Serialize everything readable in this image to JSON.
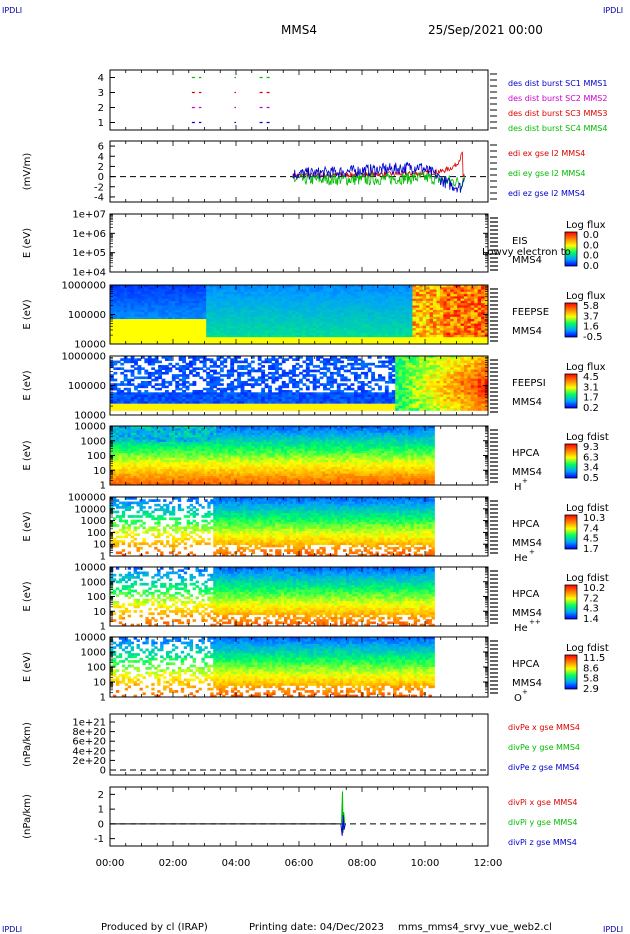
{
  "header": {
    "corner_tl": "IPDLI",
    "corner_tr": "IPDLI",
    "corner_bl": "IPDLI",
    "corner_br": "IPDLI",
    "spacecraft": "MMS4",
    "date": "25/Sep/2021 00:00"
  },
  "footer": {
    "producer": "Produced by cl (IRAP)",
    "printing_date": "Printing date: 04/Dec/2023",
    "script": "mms_mms4_srvy_vue_web2.cl"
  },
  "chart_data": [
    {
      "type": "line",
      "id": "des_dist_burst",
      "y_ticks": [
        "1",
        "2",
        "3",
        "4"
      ],
      "ylim": [
        0.5,
        4.5
      ],
      "legend": [
        "des dist burst SC1 MMS1",
        "des dist burst SC2 MMS2",
        "des dist burst SC3 MMS3",
        "des dist burst SC4 MMS4"
      ],
      "legend_colors": [
        "#0000cc",
        "#cc00cc",
        "#dd0000",
        "#00bb00"
      ],
      "series": [
        {
          "name": "des dist burst SC4 MMS4",
          "color": "#00bb00",
          "level": 4,
          "x_hours": [
            [
              2.6,
              2.9
            ],
            [
              3.95,
              4.0
            ],
            [
              4.75,
              5.1
            ]
          ]
        },
        {
          "name": "des dist burst SC3 MMS3",
          "color": "#dd0000",
          "level": 3,
          "x_hours": [
            [
              2.6,
              2.9
            ],
            [
              3.95,
              4.0
            ],
            [
              4.75,
              5.1
            ]
          ]
        },
        {
          "name": "des dist burst SC2 MMS2",
          "color": "#cc00cc",
          "level": 2,
          "x_hours": [
            [
              2.6,
              2.9
            ],
            [
              3.95,
              4.0
            ],
            [
              4.75,
              5.1
            ]
          ]
        },
        {
          "name": "des dist burst SC1 MMS1",
          "color": "#0000cc",
          "level": 1,
          "x_hours": [
            [
              2.6,
              2.9
            ],
            [
              3.95,
              4.0
            ],
            [
              4.75,
              5.1
            ]
          ]
        }
      ]
    },
    {
      "type": "line",
      "id": "edi_efield",
      "ylabel": "(mV/m)",
      "y_ticks": [
        "-4",
        "-2",
        "0",
        "2",
        "4",
        "6"
      ],
      "ylim": [
        -5,
        7
      ],
      "legend": [
        "edi ex gse l2 MMS4",
        "edi ey gse l2 MMS4",
        "edi ez gse l2 MMS4"
      ],
      "legend_colors": [
        "#dd0000",
        "#00bb00",
        "#0000cc"
      ],
      "data_range_hours": [
        5.8,
        11.25
      ],
      "series": [
        {
          "name": "edi ex gse l2 MMS4",
          "color": "#dd0000",
          "x": [
            5.8,
            7,
            8,
            9,
            9.8,
            10.5,
            10.8,
            11.0,
            11.1,
            11.2
          ],
          "y": [
            0.2,
            0.3,
            0.4,
            0.5,
            0.6,
            1.0,
            1.6,
            2.4,
            3.4,
            4.8
          ]
        },
        {
          "name": "edi ey gse l2 MMS4",
          "color": "#00bb00",
          "x": [
            5.8,
            7,
            8,
            9,
            10,
            10.5,
            11,
            11.2
          ],
          "y": [
            -0.6,
            -0.5,
            -0.6,
            -0.4,
            -0.2,
            -0.6,
            -1.0,
            -1.2
          ]
        },
        {
          "name": "edi ez gse l2 MMS4",
          "color": "#0000cc",
          "x": [
            5.8,
            7,
            8,
            9,
            9.8,
            10.3,
            10.6,
            10.9,
            11.2
          ],
          "y": [
            0.5,
            0.8,
            1.2,
            1.5,
            2.0,
            0.5,
            -1.0,
            -1.8,
            -2.2
          ]
        }
      ]
    },
    {
      "type": "heatmap",
      "id": "eis",
      "ylabel": "E (eV)",
      "y_ticks": [
        "1e+04",
        "1e+05",
        "1e+06",
        "1e+07"
      ],
      "instrument": "EIS",
      "spacecraft": "MMS4",
      "overlay_text": "Lowvy electron to",
      "colorbar_title": "Log flux",
      "colorbar_ticks": [
        "0.0",
        "0.0",
        "0.0",
        "0.0"
      ]
    },
    {
      "type": "heatmap",
      "id": "feepse",
      "ylabel": "E (eV)",
      "y_ticks": [
        "10000",
        "100000",
        "1000000"
      ],
      "instrument": "FEEPSE",
      "spacecraft": "MMS4",
      "colorbar_title": "Log flux",
      "colorbar_ticks": [
        "5.8",
        "3.7",
        "1.6",
        "-0.5"
      ]
    },
    {
      "type": "heatmap",
      "id": "feepsi",
      "ylabel": "E (eV)",
      "y_ticks": [
        "10000",
        "100000",
        "1000000"
      ],
      "instrument": "FEEPSI",
      "spacecraft": "MMS4",
      "colorbar_title": "Log flux",
      "colorbar_ticks": [
        "4.5",
        "3.1",
        "1.7",
        "0.2"
      ]
    },
    {
      "type": "heatmap",
      "id": "hpca_h",
      "ylabel": "E (eV)",
      "y_ticks": [
        "1",
        "10",
        "100",
        "1000",
        "10000"
      ],
      "instrument": "HPCA",
      "spacecraft": "MMS4",
      "species": "H",
      "charge": "+",
      "colorbar_title": "Log fdist",
      "colorbar_ticks": [
        "9.3",
        "6.3",
        "3.4",
        "0.5"
      ],
      "data_end_hours": 10.3
    },
    {
      "type": "heatmap",
      "id": "hpca_he",
      "ylabel": "E (eV)",
      "y_ticks": [
        "1",
        "10",
        "100",
        "1000",
        "10000",
        "100000"
      ],
      "instrument": "HPCA",
      "spacecraft": "MMS4",
      "species": "He",
      "charge": "+",
      "colorbar_title": "Log fdist",
      "colorbar_ticks": [
        "10.3",
        "7.4",
        "4.5",
        "1.7"
      ],
      "data_end_hours": 10.3
    },
    {
      "type": "heatmap",
      "id": "hpca_hepp",
      "ylabel": "E (eV)",
      "y_ticks": [
        "1",
        "10",
        "100",
        "1000",
        "10000"
      ],
      "instrument": "HPCA",
      "spacecraft": "MMS4",
      "species": "He",
      "charge": "++",
      "colorbar_title": "Log fdist",
      "colorbar_ticks": [
        "10.2",
        "7.2",
        "4.3",
        "1.4"
      ],
      "data_end_hours": 10.3
    },
    {
      "type": "heatmap",
      "id": "hpca_o",
      "ylabel": "E (eV)",
      "y_ticks": [
        "1",
        "10",
        "100",
        "1000",
        "10000"
      ],
      "instrument": "HPCA",
      "spacecraft": "MMS4",
      "species": "O",
      "charge": "+",
      "colorbar_title": "Log fdist",
      "colorbar_ticks": [
        "11.5",
        "8.6",
        "5.8",
        "2.9"
      ],
      "data_end_hours": 10.3
    },
    {
      "type": "line",
      "id": "divpe",
      "ylabel": "(nPa/km)",
      "y_ticks": [
        "0",
        "2e+20",
        "4e+20",
        "6e+20",
        "8e+20",
        "1e+21"
      ],
      "legend": [
        "divPe x gse MMS4",
        "divPe y gse MMS4",
        "divPe z gse MMS4"
      ],
      "legend_colors": [
        "#dd0000",
        "#00bb00",
        "#0000cc"
      ],
      "series": []
    },
    {
      "type": "line",
      "id": "divpi",
      "ylabel": "(nPa/km)",
      "y_ticks": [
        "-1",
        "0",
        "1",
        "2"
      ],
      "ylim": [
        -1.5,
        2.5
      ],
      "legend": [
        "divPi x gse MMS4",
        "divPi y gse MMS4",
        "divPi z gse MMS4"
      ],
      "legend_colors": [
        "#dd0000",
        "#00bb00",
        "#0000cc"
      ],
      "series": [
        {
          "name": "divPi x gse MMS4",
          "color": "#dd0000",
          "x": [
            0,
            12
          ],
          "y": [
            0,
            0
          ]
        },
        {
          "name": "divPi y gse MMS4",
          "color": "#00bb00",
          "x": [
            7.35,
            7.38,
            7.4,
            7.42,
            7.45
          ],
          "y": [
            0,
            2.2,
            -0.6,
            0.8,
            0
          ]
        },
        {
          "name": "divPi z gse MMS4",
          "color": "#0000cc",
          "x": [
            7.33,
            7.37,
            7.4,
            7.43,
            7.47
          ],
          "y": [
            0,
            -0.8,
            0.6,
            -0.4,
            0
          ]
        }
      ]
    }
  ],
  "x_axis": {
    "tick_labels": [
      "00:00",
      "02:00",
      "04:00",
      "06:00",
      "08:00",
      "10:00",
      "12:00"
    ],
    "xlim_hours": [
      0,
      12
    ]
  }
}
